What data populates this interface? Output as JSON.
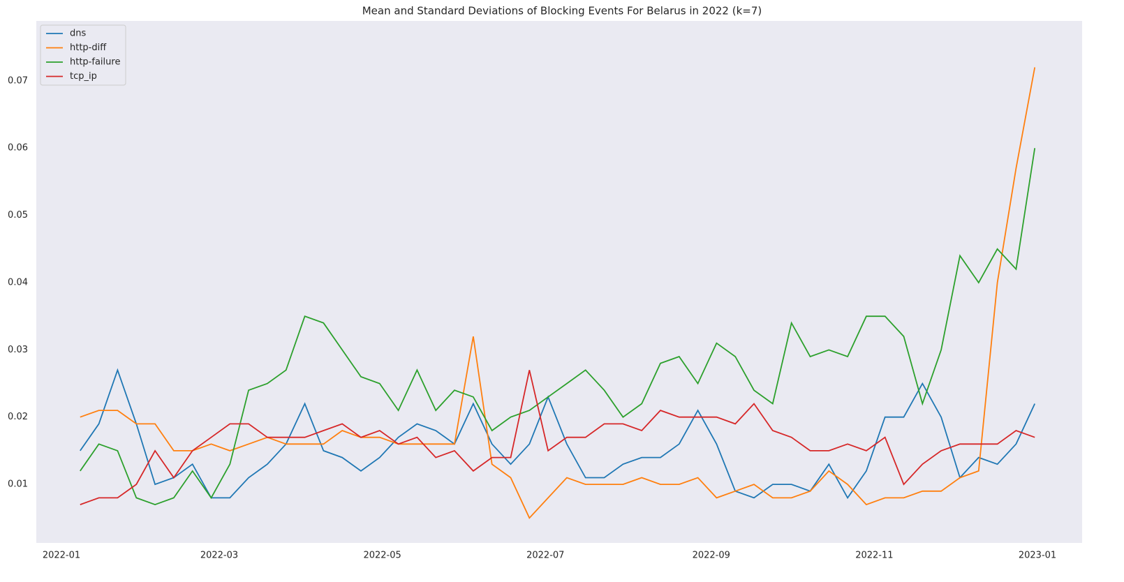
{
  "chart_data": {
    "type": "line",
    "title": "Mean and Standard Deviations of Blocking Events For Belarus in 2022 (k=7)",
    "x": [
      8,
      15,
      22,
      29,
      36,
      43,
      50,
      57,
      64,
      71,
      78,
      85,
      92,
      99,
      106,
      113,
      120,
      127,
      134,
      141,
      148,
      155,
      162,
      169,
      176,
      183,
      190,
      197,
      204,
      211,
      218,
      225,
      232,
      239,
      246,
      253,
      260,
      267,
      274,
      281,
      288,
      295,
      302,
      309,
      316,
      323,
      330,
      337,
      344,
      351,
      358,
      365
    ],
    "series": [
      {
        "name": "dns",
        "color": "#1f77b4",
        "values": [
          0.015,
          0.019,
          0.027,
          0.019,
          0.01,
          0.011,
          0.013,
          0.008,
          0.008,
          0.011,
          0.013,
          0.016,
          0.022,
          0.015,
          0.014,
          0.012,
          0.014,
          0.017,
          0.019,
          0.018,
          0.016,
          0.022,
          0.016,
          0.013,
          0.016,
          0.023,
          0.016,
          0.011,
          0.011,
          0.013,
          0.014,
          0.014,
          0.016,
          0.021,
          0.016,
          0.009,
          0.008,
          0.01,
          0.01,
          0.009,
          0.013,
          0.008,
          0.012,
          0.02,
          0.02,
          0.025,
          0.02,
          0.011,
          0.014,
          0.013,
          0.016,
          0.022
        ]
      },
      {
        "name": "http-diff",
        "color": "#ff7f0e",
        "values": [
          0.02,
          0.021,
          0.021,
          0.019,
          0.019,
          0.015,
          0.015,
          0.016,
          0.015,
          0.016,
          0.017,
          0.016,
          0.016,
          0.016,
          0.018,
          0.017,
          0.017,
          0.016,
          0.016,
          0.016,
          0.016,
          0.032,
          0.013,
          0.011,
          0.005,
          0.008,
          0.011,
          0.01,
          0.01,
          0.01,
          0.011,
          0.01,
          0.01,
          0.011,
          0.008,
          0.009,
          0.01,
          0.008,
          0.008,
          0.009,
          0.012,
          0.01,
          0.007,
          0.008,
          0.008,
          0.009,
          0.009,
          0.011,
          0.012,
          0.04,
          0.057,
          0.072
        ]
      },
      {
        "name": "http-failure",
        "color": "#2ca02c",
        "values": [
          0.012,
          0.016,
          0.015,
          0.008,
          0.007,
          0.008,
          0.012,
          0.008,
          0.013,
          0.024,
          0.025,
          0.027,
          0.035,
          0.034,
          0.03,
          0.026,
          0.025,
          0.021,
          0.027,
          0.021,
          0.024,
          0.023,
          0.018,
          0.02,
          0.021,
          0.023,
          0.025,
          0.027,
          0.024,
          0.02,
          0.022,
          0.028,
          0.029,
          0.025,
          0.031,
          0.029,
          0.024,
          0.022,
          0.034,
          0.029,
          0.03,
          0.029,
          0.035,
          0.035,
          0.032,
          0.022,
          0.03,
          0.044,
          0.04,
          0.045,
          0.042,
          0.06
        ]
      },
      {
        "name": "tcp_ip",
        "color": "#d62728",
        "values": [
          0.007,
          0.008,
          0.008,
          0.01,
          0.015,
          0.011,
          0.015,
          0.017,
          0.019,
          0.019,
          0.017,
          0.017,
          0.017,
          0.018,
          0.019,
          0.017,
          0.018,
          0.016,
          0.017,
          0.014,
          0.015,
          0.012,
          0.014,
          0.014,
          0.027,
          0.015,
          0.017,
          0.017,
          0.019,
          0.019,
          0.018,
          0.021,
          0.02,
          0.02,
          0.02,
          0.019,
          0.022,
          0.018,
          0.017,
          0.015,
          0.015,
          0.016,
          0.015,
          0.017,
          0.01,
          0.013,
          0.015,
          0.016,
          0.016,
          0.016,
          0.018,
          0.017
        ]
      }
    ],
    "xlim": [
      -8.4,
      382.7
    ],
    "xticks": [
      {
        "value": 1,
        "label": "2022-01"
      },
      {
        "value": 60,
        "label": "2022-03"
      },
      {
        "value": 121,
        "label": "2022-05"
      },
      {
        "value": 182,
        "label": "2022-07"
      },
      {
        "value": 244,
        "label": "2022-09"
      },
      {
        "value": 305,
        "label": "2022-11"
      },
      {
        "value": 366,
        "label": "2023-01"
      }
    ],
    "ylim": [
      0.0013,
      0.0789
    ],
    "yticks": [
      0.01,
      0.02,
      0.03,
      0.04,
      0.05,
      0.06,
      0.07
    ],
    "grid": false,
    "legend": "upper-left",
    "background": "#eaeaf2"
  }
}
